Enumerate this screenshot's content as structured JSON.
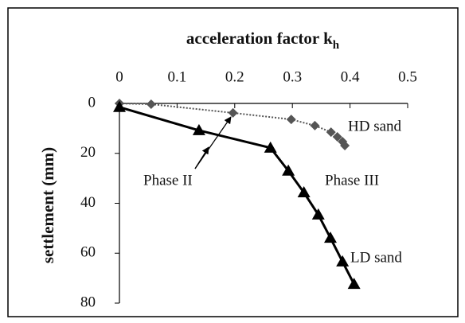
{
  "chart_data": {
    "type": "line",
    "x_label": "acceleration factor k",
    "x_label_subscript": "h",
    "y_label": "settlement (mm)",
    "xlim": [
      0,
      0.5
    ],
    "xticks": [
      0,
      0.1,
      0.2,
      0.3,
      0.4,
      0.5
    ],
    "ylim": [
      0,
      80
    ],
    "yticks": [
      0,
      20,
      40,
      60,
      80
    ],
    "y_inverted": true,
    "x_axis_position": "top",
    "annotations": [
      "HD sand",
      "Phase II",
      "Phase III",
      "LD sand"
    ],
    "series": [
      {
        "name": "HD sand",
        "color": "#555555",
        "marker": "diamond",
        "line": "dotted",
        "x": [
          0,
          0.055,
          0.197,
          0.298,
          0.339,
          0.367,
          0.378,
          0.387,
          0.391
        ],
        "values": [
          0,
          0.3,
          3.8,
          6.4,
          8.9,
          11.5,
          13.4,
          15.3,
          16.9
        ]
      },
      {
        "name": "LD sand",
        "color": "#000000",
        "marker": "triangle",
        "line": "solid",
        "x": [
          0,
          0.138,
          0.262,
          0.293,
          0.32,
          0.345,
          0.366,
          0.387,
          0.407
        ],
        "values": [
          1.5,
          10.8,
          17.8,
          27,
          35.7,
          44.6,
          53.9,
          63.4,
          72.4
        ]
      }
    ]
  }
}
